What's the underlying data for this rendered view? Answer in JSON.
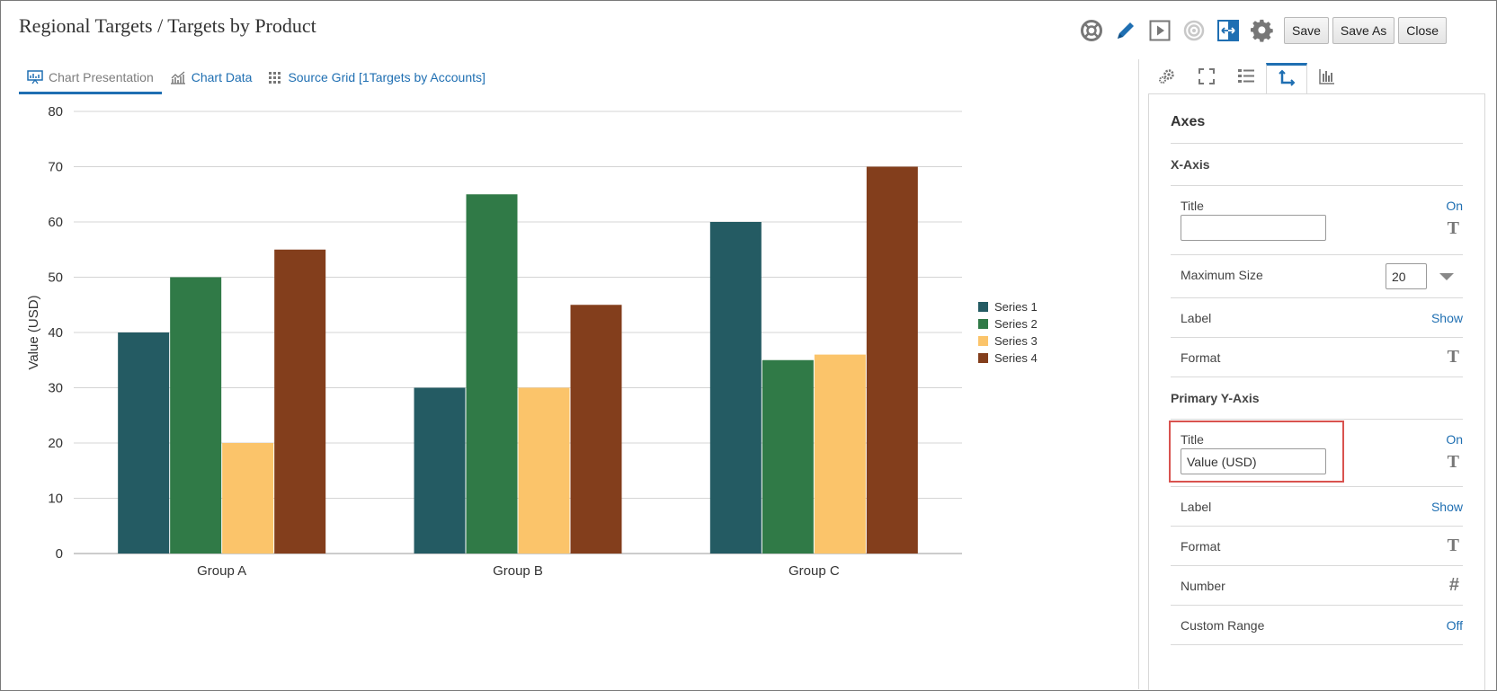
{
  "header": {
    "title": "Regional Targets / Targets by Product"
  },
  "toolbar": {
    "icons": [
      "lifebuoy-icon",
      "pencil-icon",
      "play-icon",
      "target-icon",
      "fit-width-icon",
      "gear-icon"
    ],
    "save_label": "Save",
    "save_as_label": "Save As",
    "close_label": "Close"
  },
  "tabs": [
    {
      "label": "Chart Presentation",
      "icon": "chart-presentation-icon",
      "active": true
    },
    {
      "label": "Chart Data",
      "icon": "line-chart-icon",
      "active": false
    },
    {
      "label": "Source Grid [1Targets by Accounts]",
      "icon": "grid-icon",
      "active": false
    }
  ],
  "chart_data": {
    "type": "bar",
    "categories": [
      "Group A",
      "Group B",
      "Group C"
    ],
    "series": [
      {
        "name": "Series 1",
        "color": "#245b63",
        "values": [
          40,
          30,
          60
        ]
      },
      {
        "name": "Series 2",
        "color": "#307a47",
        "values": [
          50,
          65,
          35
        ]
      },
      {
        "name": "Series 3",
        "color": "#fbc46a",
        "values": [
          20,
          30,
          36
        ]
      },
      {
        "name": "Series 4",
        "color": "#833e1c",
        "values": [
          55,
          45,
          70
        ]
      }
    ],
    "ylabel": "Value (USD)",
    "xlabel": "",
    "ylim": [
      0,
      80
    ],
    "yticks": [
      0,
      10,
      20,
      30,
      40,
      50,
      60,
      70,
      80
    ],
    "grid": true,
    "legend": "right"
  },
  "panel": {
    "tabs": [
      "settings-icon",
      "fullscreen-icon",
      "list-icon",
      "axes-icon",
      "bar-chart-icon"
    ],
    "active_tab": 3,
    "section_title": "Axes",
    "x_axis": {
      "title": "X-Axis",
      "title_label": "Title",
      "title_state": "On",
      "title_value": "",
      "max_size_label": "Maximum Size",
      "max_size_value": "20",
      "label_label": "Label",
      "label_state": "Show",
      "format_label": "Format"
    },
    "y_axis": {
      "title": "Primary Y-Axis",
      "title_label": "Title",
      "title_state": "On",
      "title_value": "Value (USD)",
      "label_label": "Label",
      "label_state": "Show",
      "format_label": "Format",
      "number_label": "Number",
      "custom_range_label": "Custom Range",
      "custom_range_state": "Off"
    }
  }
}
